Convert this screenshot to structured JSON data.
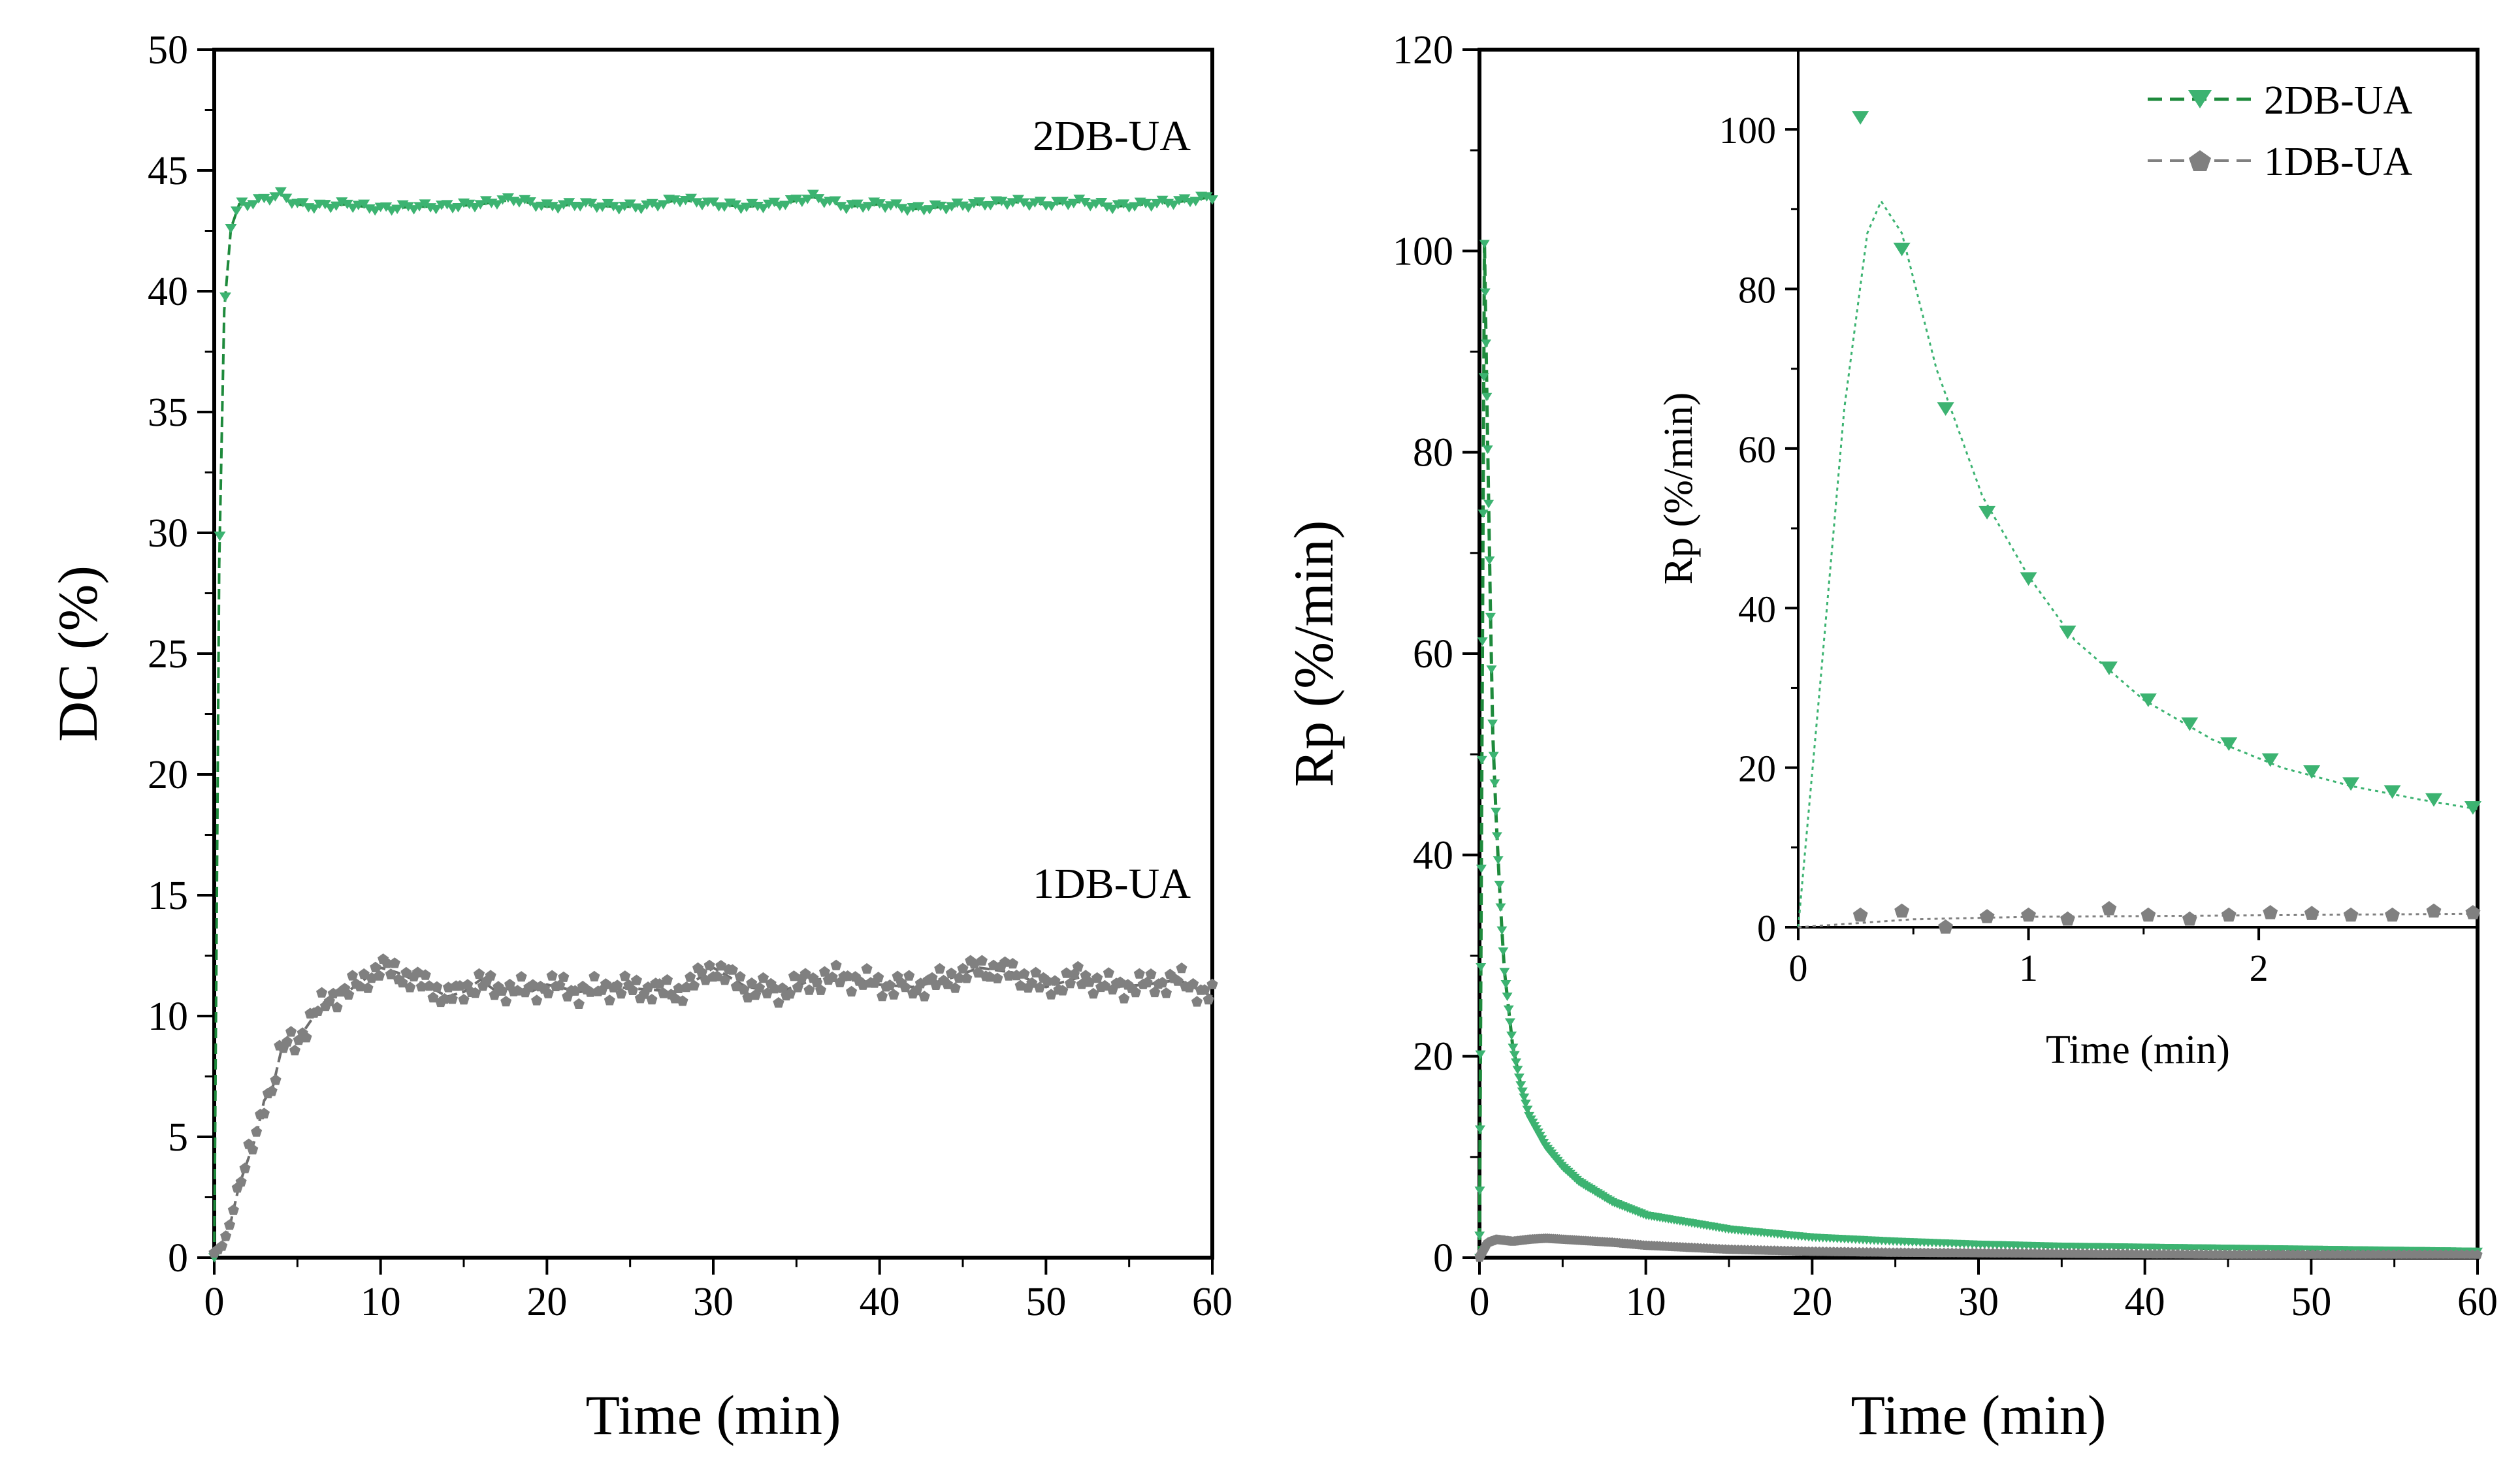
{
  "colors": {
    "green": "#3cb371",
    "gray": "#808080",
    "green_dashed": "#1e8a3c",
    "axis": "#000000"
  },
  "chart_data": [
    {
      "type": "line",
      "xlabel": "Time (min)",
      "ylabel": "DC (%)",
      "xlim": [
        0,
        60
      ],
      "ylim": [
        0,
        50
      ],
      "xticks": [
        0,
        10,
        20,
        30,
        40,
        50,
        60
      ],
      "yticks": [
        0,
        5,
        10,
        15,
        20,
        25,
        30,
        35,
        40,
        45,
        50
      ],
      "series": [
        {
          "name": "2DB-UA",
          "color": "#3cb371",
          "marker": "triangle-down",
          "x": [
            0,
            0.3,
            0.6,
            1,
            1.5,
            2,
            3,
            4,
            5,
            6,
            8,
            10,
            12,
            14,
            16,
            18,
            20,
            22,
            24,
            26,
            28,
            30,
            32,
            34,
            36,
            38,
            40,
            42,
            44,
            46,
            48,
            50,
            52,
            54,
            56,
            58,
            60
          ],
          "values": [
            0,
            28.7,
            39.2,
            42.6,
            43.6,
            43.6,
            43.8,
            44.0,
            43.6,
            43.5,
            43.6,
            43.4,
            43.5,
            43.5,
            43.6,
            43.8,
            43.5,
            43.6,
            43.5,
            43.5,
            43.8,
            43.6,
            43.5,
            43.6,
            43.9,
            43.5,
            43.6,
            43.4,
            43.5,
            43.6,
            43.7,
            43.6,
            43.7,
            43.5,
            43.6,
            43.7,
            43.9
          ]
        },
        {
          "name": "1DB-UA",
          "color": "#808080",
          "marker": "pentagon",
          "x": [
            0,
            0.5,
            1,
            1.5,
            2,
            2.5,
            3,
            3.5,
            4,
            4.5,
            5,
            5.5,
            6,
            6.5,
            7,
            8,
            9,
            10,
            11,
            12,
            13,
            14,
            15,
            16,
            17,
            18,
            19,
            20,
            22,
            24,
            26,
            28,
            30,
            32,
            34,
            36,
            38,
            40,
            42,
            44,
            46,
            48,
            50,
            52,
            54,
            56,
            58,
            60
          ],
          "values": [
            0.2,
            0.5,
            1.5,
            3.0,
            4.0,
            5.0,
            6.5,
            7.0,
            8.5,
            9.0,
            9.0,
            9.5,
            10.0,
            10.5,
            10.8,
            11.0,
            11.5,
            12.0,
            11.8,
            11.5,
            11.2,
            10.8,
            11.0,
            11.5,
            11.0,
            11.2,
            11.0,
            11.3,
            11.0,
            11.2,
            11.1,
            11.0,
            12.0,
            11.2,
            11.0,
            11.5,
            11.6,
            11.3,
            11.2,
            11.5,
            12.0,
            11.8,
            11.2,
            11.6,
            11.2,
            11.3,
            11.5,
            10.8
          ]
        }
      ],
      "annotations": [
        {
          "text": "2DB-UA",
          "x": 57,
          "y": 46
        },
        {
          "text": "1DB-UA",
          "x": 57,
          "y": 15
        }
      ]
    },
    {
      "type": "line",
      "xlabel": "Time (min)",
      "ylabel": "Rp (%/min)",
      "xlim": [
        0,
        60
      ],
      "ylim": [
        0,
        120
      ],
      "xticks": [
        0,
        10,
        20,
        30,
        40,
        50,
        60
      ],
      "yticks": [
        0,
        20,
        40,
        60,
        80,
        100,
        120
      ],
      "series": [
        {
          "name": "2DB-UA",
          "color": "#3cb371",
          "marker": "triangle-down",
          "x": [
            0,
            0.3,
            0.45,
            0.65,
            0.8,
            1.0,
            1.2,
            1.35,
            1.5,
            1.7,
            2.0,
            2.5,
            3,
            4,
            5,
            6,
            8,
            10,
            15,
            20,
            25,
            30,
            35,
            40,
            45,
            50,
            55,
            60
          ],
          "values": [
            0,
            101,
            85,
            65,
            52,
            43.7,
            37,
            32.5,
            28.5,
            25.5,
            21,
            17,
            14,
            11,
            9,
            7.5,
            5.5,
            4.2,
            2.8,
            2.0,
            1.6,
            1.3,
            1.1,
            1.0,
            0.9,
            0.8,
            0.7,
            0.6
          ]
        },
        {
          "name": "1DB-UA",
          "color": "#808080",
          "marker": "pentagon",
          "x": [
            0,
            0.5,
            1,
            2,
            3,
            4,
            5,
            6,
            8,
            10,
            15,
            20,
            25,
            30,
            35,
            40,
            45,
            50,
            55,
            60
          ],
          "values": [
            0,
            1.5,
            1.8,
            1.6,
            1.8,
            1.9,
            1.8,
            1.7,
            1.5,
            1.2,
            0.8,
            0.6,
            0.5,
            0.45,
            0.4,
            0.35,
            0.3,
            0.3,
            0.3,
            0.3
          ]
        }
      ],
      "legend": {
        "position": "top-right",
        "entries": [
          "2DB-UA",
          "1DB-UA"
        ]
      },
      "inset": {
        "type": "line",
        "xlabel": "Time (min)",
        "ylabel": "Rp (%/min)",
        "xlim": [
          0,
          2.95
        ],
        "ylim": [
          0,
          110
        ],
        "xticks": [
          0,
          1,
          2
        ],
        "yticks": [
          0,
          20,
          40,
          60,
          80,
          100
        ],
        "series": [
          {
            "name": "2DB-UA",
            "color": "#3cb371",
            "marker": "triangle-down",
            "points_x": [
              0.27,
              0.45,
              0.64,
              0.82,
              1.0,
              1.17,
              1.35,
              1.52,
              1.7,
              1.87,
              2.05,
              2.23,
              2.4,
              2.58,
              2.76,
              2.93
            ],
            "points_y": [
              101.5,
              85,
              65,
              52,
              43.7,
              37,
              32.5,
              28.5,
              25.5,
              23,
              21,
              19.5,
              18,
              17,
              16,
              15
            ],
            "fit_x": [
              0,
              0.1,
              0.2,
              0.3,
              0.36,
              0.45,
              0.6,
              0.8,
              1.0,
              1.2,
              1.5,
              1.8,
              2.1,
              2.4,
              2.7,
              2.95
            ],
            "fit_y": [
              0,
              32,
              65,
              87,
              91,
              87,
              70,
              54,
              44,
              36,
              28.5,
              23.5,
              20,
              17.7,
              16,
              14.8
            ]
          },
          {
            "name": "1DB-UA",
            "color": "#808080",
            "marker": "pentagon",
            "points_x": [
              0.27,
              0.45,
              0.64,
              0.82,
              1.0,
              1.17,
              1.35,
              1.52,
              1.7,
              1.87,
              2.05,
              2.23,
              2.4,
              2.58,
              2.76,
              2.93
            ],
            "points_y": [
              1.5,
              2.0,
              0,
              1.3,
              1.5,
              1.0,
              2.3,
              1.5,
              1.0,
              1.5,
              1.8,
              1.7,
              1.5,
              1.5,
              2.0,
              1.8
            ],
            "fit_x": [
              0,
              0.5,
              1,
              1.5,
              2,
              2.5,
              2.95
            ],
            "fit_y": [
              0,
              1.0,
              1.3,
              1.4,
              1.5,
              1.6,
              1.7
            ]
          }
        ]
      }
    }
  ]
}
